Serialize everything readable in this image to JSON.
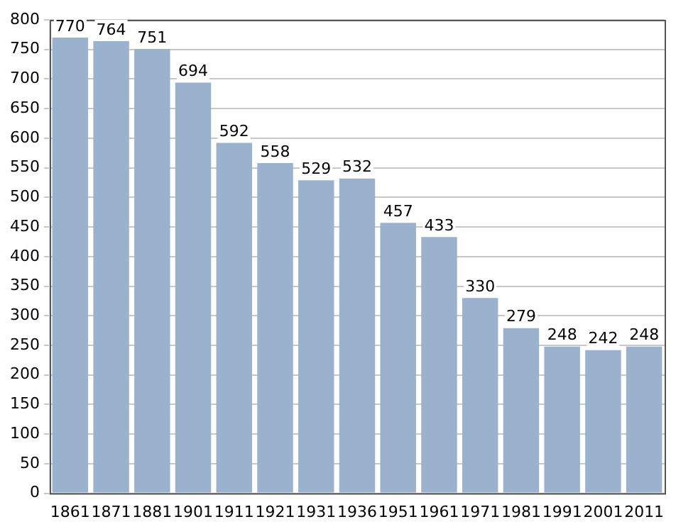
{
  "chart_data": {
    "type": "bar",
    "categories": [
      "1861",
      "1871",
      "1881",
      "1901",
      "1911",
      "1921",
      "1931",
      "1936",
      "1951",
      "1961",
      "1971",
      "1981",
      "1991",
      "2001",
      "2011"
    ],
    "values": [
      770,
      764,
      751,
      694,
      592,
      558,
      529,
      532,
      457,
      433,
      330,
      279,
      248,
      242,
      248
    ],
    "color": "#9bb2cf",
    "ylim": [
      0,
      800
    ],
    "yticks": [
      0,
      50,
      100,
      150,
      200,
      250,
      300,
      350,
      400,
      450,
      500,
      550,
      600,
      650,
      700,
      750,
      800
    ],
    "grid": "y",
    "data_labels": true
  }
}
